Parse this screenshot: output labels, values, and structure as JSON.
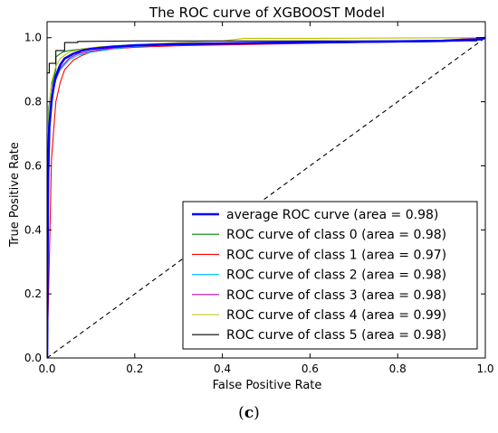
{
  "caption": {
    "open": "(",
    "letter": "c",
    "close": ")"
  },
  "chart_data": {
    "type": "line",
    "title": "The ROC curve of XGBOOST Model",
    "xlabel": "False Positive Rate",
    "ylabel": "True Positive Rate",
    "xlim": [
      0.0,
      1.0
    ],
    "ylim": [
      0.0,
      1.05
    ],
    "xticks": [
      0.0,
      0.2,
      0.4,
      0.6,
      0.8,
      1.0
    ],
    "yticks": [
      0.0,
      0.2,
      0.4,
      0.6,
      0.8,
      1.0
    ],
    "xtick_labels": [
      "0.0",
      "0.2",
      "0.4",
      "0.6",
      "0.8",
      "1.0"
    ],
    "ytick_labels": [
      "0.0",
      "0.2",
      "0.4",
      "0.6",
      "0.8",
      "1.0"
    ],
    "grid": false,
    "legend_position": "lower-right",
    "series": [
      {
        "name": "average ROC curve (area = 0.98)",
        "color": "#0000ff",
        "width": 2.6,
        "x": [
          0,
          0.002,
          0.005,
          0.01,
          0.015,
          0.02,
          0.03,
          0.04,
          0.06,
          0.08,
          0.1,
          0.15,
          0.2,
          0.3,
          0.5,
          0.7,
          0.9,
          0.99,
          1.0
        ],
        "y": [
          0,
          0.55,
          0.72,
          0.8,
          0.85,
          0.88,
          0.915,
          0.935,
          0.95,
          0.96,
          0.965,
          0.972,
          0.976,
          0.98,
          0.984,
          0.987,
          0.99,
          0.995,
          1.0
        ]
      },
      {
        "name": "ROC curve of class 0 (area = 0.98)",
        "color": "#007f00",
        "width": 1.1,
        "x": [
          0,
          0.002,
          0.004,
          0.01,
          0.02,
          0.02,
          0.035,
          0.05,
          0.08,
          0.12,
          0.2,
          0.3,
          0.4,
          0.5,
          0.7,
          0.9,
          1.0
        ],
        "y": [
          0,
          0.6,
          0.78,
          0.85,
          0.9,
          0.94,
          0.955,
          0.96,
          0.965,
          0.97,
          0.975,
          0.978,
          0.98,
          0.982,
          0.985,
          0.988,
          1.0
        ]
      },
      {
        "name": "ROC curve of class 1 (area = 0.97)",
        "color": "#ff0000",
        "width": 1.1,
        "x": [
          0,
          0.005,
          0.01,
          0.02,
          0.03,
          0.04,
          0.06,
          0.08,
          0.1,
          0.15,
          0.2,
          0.3,
          0.5,
          0.7,
          0.9,
          1.0
        ],
        "y": [
          0,
          0.3,
          0.62,
          0.8,
          0.86,
          0.9,
          0.93,
          0.945,
          0.955,
          0.965,
          0.97,
          0.975,
          0.98,
          0.985,
          0.99,
          1.0
        ]
      },
      {
        "name": "ROC curve of class 2 (area = 0.98)",
        "color": "#00bfff",
        "width": 1.1,
        "x": [
          0,
          0.003,
          0.006,
          0.01,
          0.02,
          0.03,
          0.05,
          0.07,
          0.1,
          0.15,
          0.2,
          0.3,
          0.5,
          0.7,
          0.9,
          1.0
        ],
        "y": [
          0,
          0.55,
          0.75,
          0.82,
          0.87,
          0.9,
          0.93,
          0.945,
          0.955,
          0.965,
          0.972,
          0.978,
          0.983,
          0.987,
          0.99,
          1.0
        ]
      },
      {
        "name": "ROC curve of class 3 (area = 0.98)",
        "color": "#bf00bf",
        "width": 1.1,
        "x": [
          0,
          0.003,
          0.006,
          0.01,
          0.02,
          0.03,
          0.05,
          0.07,
          0.1,
          0.15,
          0.2,
          0.3,
          0.5,
          0.7,
          0.9,
          1.0
        ],
        "y": [
          0,
          0.5,
          0.72,
          0.8,
          0.87,
          0.905,
          0.935,
          0.95,
          0.958,
          0.968,
          0.974,
          0.979,
          0.984,
          0.988,
          0.992,
          1.0
        ]
      },
      {
        "name": "ROC curve of class 4 (area = 0.99)",
        "color": "#bfbf00",
        "width": 1.1,
        "x": [
          0,
          0.003,
          0.005,
          0.01,
          0.02,
          0.03,
          0.05,
          0.08,
          0.12,
          0.2,
          0.3,
          0.4,
          0.45,
          0.6,
          0.8,
          1.0
        ],
        "y": [
          0,
          0.6,
          0.78,
          0.86,
          0.91,
          0.935,
          0.955,
          0.965,
          0.972,
          0.978,
          0.985,
          0.99,
          0.998,
          0.998,
          0.999,
          1.0
        ]
      },
      {
        "name": "ROC curve of class 5 (area = 0.98)",
        "color": "#000000",
        "width": 1.1,
        "x": [
          0,
          0.0,
          0.005,
          0.005,
          0.02,
          0.02,
          0.04,
          0.04,
          0.07,
          0.07,
          0.2,
          0.4,
          0.6,
          0.8,
          0.98,
          0.98,
          1.0
        ],
        "y": [
          0,
          0.89,
          0.89,
          0.92,
          0.92,
          0.96,
          0.96,
          0.985,
          0.985,
          0.988,
          0.99,
          0.99,
          0.99,
          0.99,
          0.99,
          1.0,
          1.0
        ]
      },
      {
        "name": "",
        "color": "#000000",
        "width": 1.1,
        "dash": "5,4",
        "x": [
          0,
          1
        ],
        "y": [
          0,
          1
        ]
      }
    ]
  }
}
